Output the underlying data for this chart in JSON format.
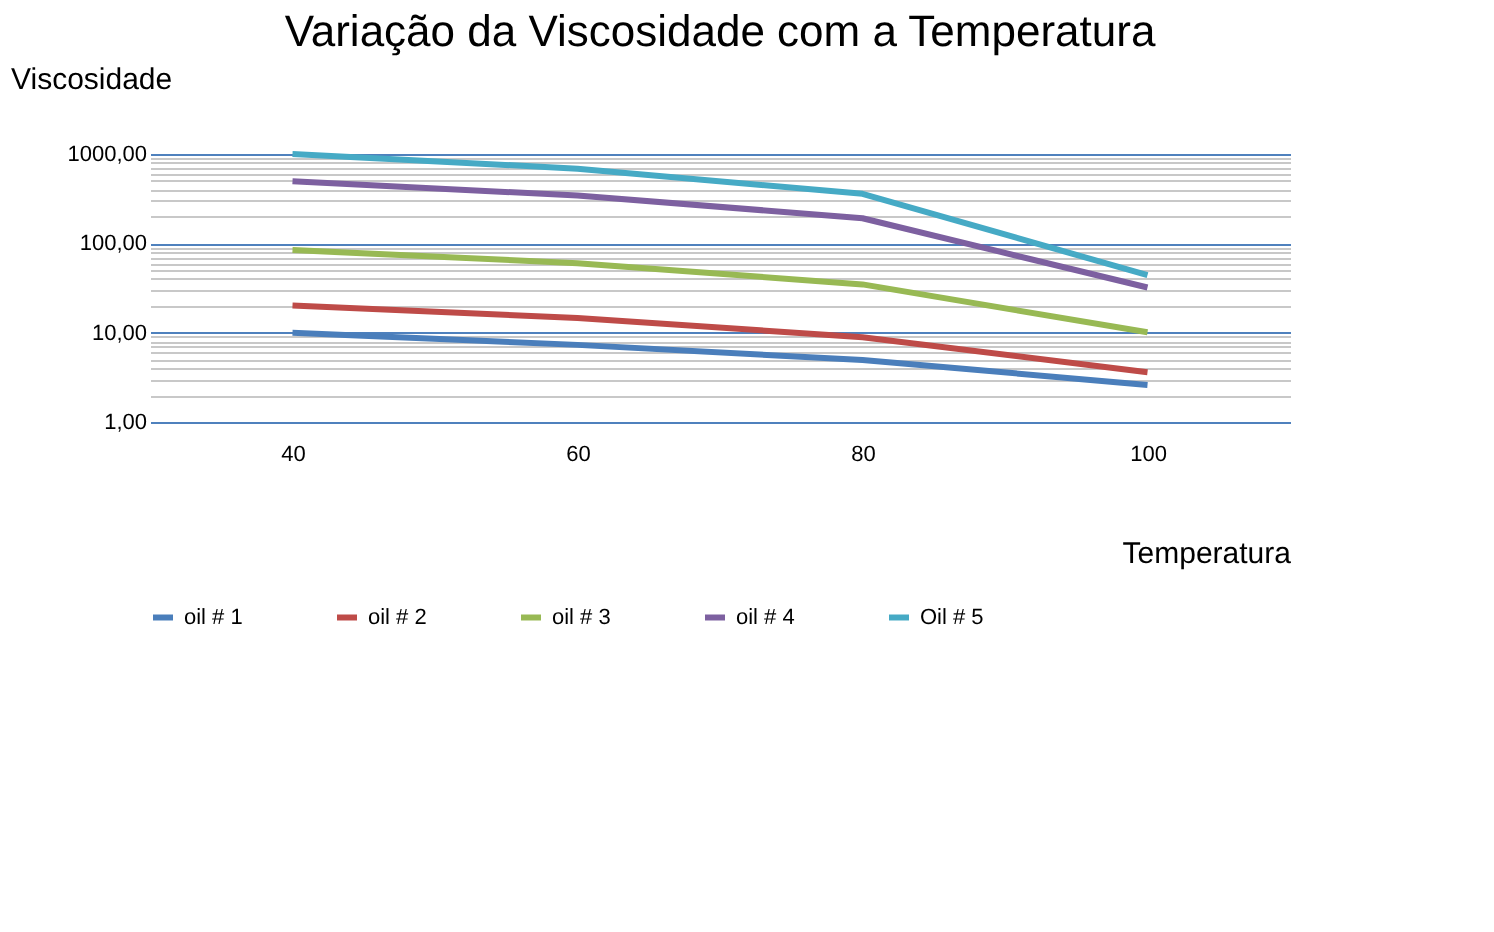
{
  "chart_data": {
    "type": "line",
    "title": "Variação da Viscosidade com a Temperatura",
    "xlabel": "Temperatura",
    "ylabel": "Viscosidade",
    "categories": [
      "40",
      "60",
      "80",
      "100"
    ],
    "series": [
      {
        "name": "oil # 1",
        "color": "#4a7ebb",
        "values": [
          10,
          7.3,
          4.95,
          2.6
        ]
      },
      {
        "name": "oil # 2",
        "color": "#be4b48",
        "values": [
          20.2,
          14.6,
          8.9,
          3.6
        ]
      },
      {
        "name": "oil # 3",
        "color": "#98b954",
        "values": [
          84,
          60,
          34.7,
          10.1
        ]
      },
      {
        "name": "oil # 4",
        "color": "#7d60a0",
        "values": [
          495,
          343,
          191,
          32
        ]
      },
      {
        "name": "Oil # 5",
        "color": "#46aac5",
        "values": [
          1000,
          685,
          358,
          44
        ]
      }
    ],
    "log": true,
    "ylim": [
      1,
      1000
    ],
    "yticks": [
      {
        "value": 1,
        "label": "1,00"
      },
      {
        "value": 2,
        "label": null
      },
      {
        "value": 3,
        "label": null
      },
      {
        "value": 4,
        "label": null
      },
      {
        "value": 5,
        "label": null
      },
      {
        "value": 6,
        "label": null
      },
      {
        "value": 7,
        "label": null
      },
      {
        "value": 8,
        "label": null
      },
      {
        "value": 9,
        "label": null
      },
      {
        "value": 10,
        "label": "10,00"
      },
      {
        "value": 20,
        "label": null
      },
      {
        "value": 30,
        "label": null
      },
      {
        "value": 40,
        "label": null
      },
      {
        "value": 50,
        "label": null
      },
      {
        "value": 60,
        "label": null
      },
      {
        "value": 70,
        "label": null
      },
      {
        "value": 80,
        "label": null
      },
      {
        "value": 90,
        "label": null
      },
      {
        "value": 100,
        "label": "100,00"
      },
      {
        "value": 200,
        "label": null
      },
      {
        "value": 300,
        "label": null
      },
      {
        "value": 400,
        "label": null
      },
      {
        "value": 500,
        "label": null
      },
      {
        "value": 600,
        "label": null
      },
      {
        "value": 700,
        "label": null
      },
      {
        "value": 800,
        "label": null
      },
      {
        "value": 900,
        "label": null
      },
      {
        "value": 1000,
        "label": "1000,00"
      }
    ],
    "grid": "y",
    "legend": "bottom",
    "marker": "none",
    "line_style": "solid"
  }
}
